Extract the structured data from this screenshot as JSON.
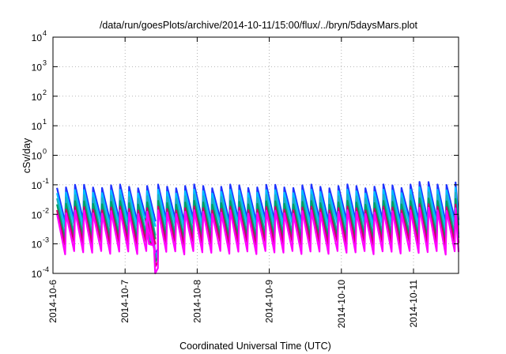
{
  "chart_data": {
    "type": "line",
    "title": "/data/run/goesPlots/archive/2014-10-11/15:00/flux/../bryn/5daysMars.plot",
    "xlabel": "Coordinated Universal Time (UTC)",
    "ylabel": "cSv/day",
    "xlim": [
      "2014-10-06T00:00",
      "2014-10-11T15:00"
    ],
    "ylim": [
      0.0001,
      10000
    ],
    "yscale": "log",
    "grid": true,
    "legend": "none",
    "x_ticks": [
      {
        "label": "2014-10-6",
        "value": "2014-10-06T00:00"
      },
      {
        "label": "2014-10-7",
        "value": "2014-10-07T00:00"
      },
      {
        "label": "2014-10-8",
        "value": "2014-10-08T00:00"
      },
      {
        "label": "2014-10-9",
        "value": "2014-10-09T00:00"
      },
      {
        "label": "2014-10-10",
        "value": "2014-10-10T00:00"
      },
      {
        "label": "2014-10-11",
        "value": "2014-10-11T00:00"
      }
    ],
    "y_ticks": [
      {
        "base": "10",
        "exp": "-4",
        "value": 0.0001
      },
      {
        "base": "10",
        "exp": "-3",
        "value": 0.001
      },
      {
        "base": "10",
        "exp": "-2",
        "value": 0.01
      },
      {
        "base": "10",
        "exp": "-1",
        "value": 0.1
      },
      {
        "base": "10",
        "exp": "0",
        "value": 1
      },
      {
        "base": "10",
        "exp": "1",
        "value": 10
      },
      {
        "base": "10",
        "exp": "2",
        "value": 100
      },
      {
        "base": "10",
        "exp": "3",
        "value": 1000
      },
      {
        "base": "10",
        "exp": "4",
        "value": 10000
      }
    ],
    "series_colors": [
      "#ff00ff",
      "#cc0066",
      "#00a060",
      "#20b0c0",
      "#00c0ff",
      "#1e32ff"
    ],
    "series": [
      {
        "color": "#1e32ff",
        "peak_value": 0.09,
        "trough_value": 0.006
      },
      {
        "color": "#00c0ff",
        "peak_value": 0.06,
        "trough_value": 0.004
      },
      {
        "color": "#20b0c0",
        "peak_value": 0.04,
        "trough_value": 0.002
      },
      {
        "color": "#00a060",
        "peak_value": 0.025,
        "trough_value": 0.0015
      },
      {
        "color": "#cc0066",
        "peak_value": 0.016,
        "trough_value": 0.001
      },
      {
        "color": "#ff00ff",
        "peak_value": 0.012,
        "trough_value": 0.0005
      }
    ],
    "sawtooth_period_hours": 3,
    "data_gap": {
      "start": "2014-10-07T07:30",
      "end": "2014-10-07T11:00",
      "values_during_gap": [
        0.0015,
        0.0001
      ]
    }
  }
}
